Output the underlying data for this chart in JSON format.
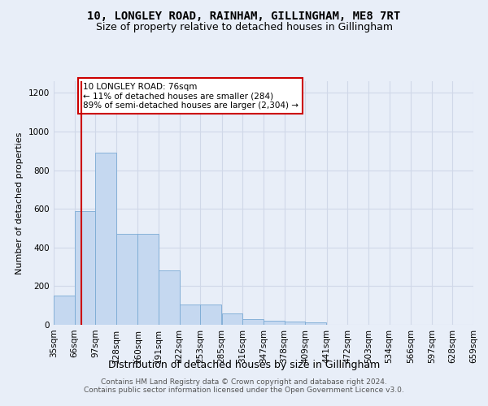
{
  "title": "10, LONGLEY ROAD, RAINHAM, GILLINGHAM, ME8 7RT",
  "subtitle": "Size of property relative to detached houses in Gillingham",
  "xlabel": "Distribution of detached houses by size in Gillingham",
  "ylabel": "Number of detached properties",
  "bar_color": "#c5d8f0",
  "bar_edge_color": "#7aaad4",
  "background_color": "#e8eef8",
  "grid_color": "#d0d8e8",
  "vline_value": 76,
  "vline_color": "#cc0000",
  "annotation_text": "10 LONGLEY ROAD: 76sqm\n← 11% of detached houses are smaller (284)\n89% of semi-detached houses are larger (2,304) →",
  "annotation_box_color": "#ffffff",
  "annotation_box_edge": "#cc0000",
  "bins": [
    35,
    66,
    97,
    128,
    160,
    191,
    222,
    253,
    285,
    316,
    347,
    378,
    409,
    441,
    472,
    503,
    534,
    566,
    597,
    628,
    659
  ],
  "bin_labels": [
    "35sqm",
    "66sqm",
    "97sqm",
    "128sqm",
    "160sqm",
    "191sqm",
    "222sqm",
    "253sqm",
    "285sqm",
    "316sqm",
    "347sqm",
    "378sqm",
    "409sqm",
    "441sqm",
    "472sqm",
    "503sqm",
    "534sqm",
    "566sqm",
    "597sqm",
    "628sqm",
    "659sqm"
  ],
  "bar_heights": [
    150,
    590,
    890,
    470,
    470,
    280,
    105,
    105,
    60,
    30,
    22,
    15,
    12,
    0,
    0,
    0,
    0,
    0,
    0,
    0
  ],
  "ylim": [
    0,
    1260
  ],
  "yticks": [
    0,
    200,
    400,
    600,
    800,
    1000,
    1200
  ],
  "footer": "Contains HM Land Registry data © Crown copyright and database right 2024.\nContains public sector information licensed under the Open Government Licence v3.0.",
  "title_fontsize": 10,
  "subtitle_fontsize": 9,
  "xlabel_fontsize": 9,
  "ylabel_fontsize": 8,
  "tick_fontsize": 7.5,
  "footer_fontsize": 6.5,
  "annotation_fontsize": 7.5
}
